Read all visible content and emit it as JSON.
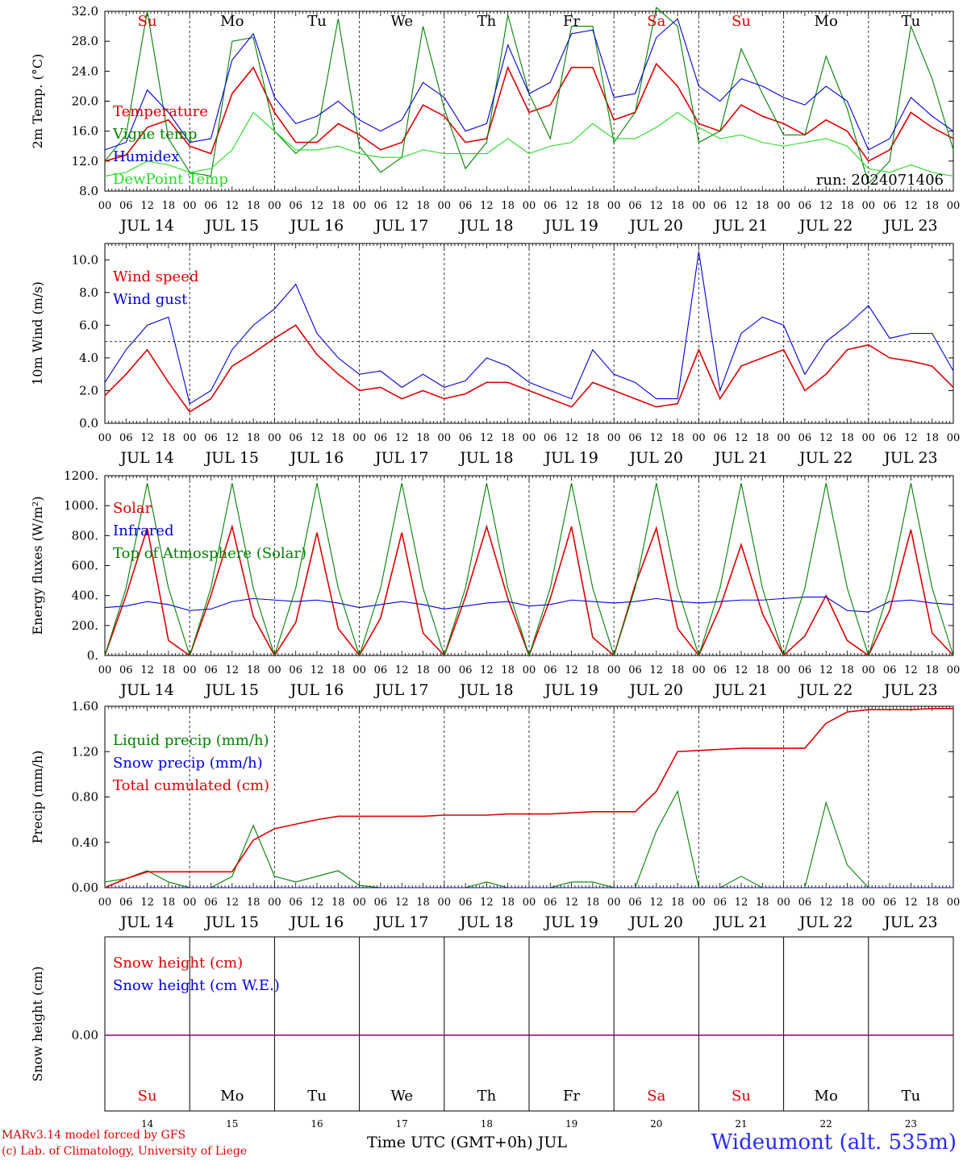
{
  "colors": {
    "red": "#e00000",
    "blue": "#0000dd",
    "green": "#008000",
    "lightgreen": "#22dd22",
    "purple": "#800080"
  },
  "footer": {
    "model": "MARv3.14 model forced by GFS",
    "credit": "(c) Lab. of Climatology, University of Liege",
    "time_label": "Time UTC (GMT+0h) JUL",
    "station": "Wideumont (alt. 535m)"
  },
  "chart_data": [
    {
      "type": "line",
      "ylabel": "2m Temp. (°C)",
      "ylim": [
        8,
        32
      ],
      "yticks": [
        "8.0",
        "12.0",
        "16.0",
        "20.0",
        "24.0",
        "28.0",
        "32.0"
      ],
      "annotation": "run: 2024071406",
      "day_names": [
        "Su",
        "Mo",
        "Tu",
        "We",
        "Th",
        "Fr",
        "Sa",
        "Su",
        "Mo",
        "Tu"
      ],
      "day_name_colors": [
        "red",
        "black",
        "black",
        "black",
        "black",
        "black",
        "red",
        "red",
        "black",
        "black"
      ],
      "hour_labels": [
        "00",
        "06",
        "12",
        "18"
      ],
      "date_labels": [
        "JUL 14",
        "JUL 15",
        "JUL 16",
        "JUL 17",
        "JUL 18",
        "JUL 19",
        "JUL 20",
        "JUL 21",
        "JUL 22",
        "JUL 23"
      ],
      "hours": [
        0,
        6,
        12,
        18,
        24,
        30,
        36,
        42,
        48,
        54,
        60,
        66,
        72,
        78,
        84,
        90,
        96,
        102,
        108,
        114,
        120,
        126,
        132,
        138,
        144,
        150,
        156,
        162,
        168,
        174,
        180,
        186,
        192,
        198,
        204,
        210,
        216,
        222,
        228,
        234,
        240
      ],
      "series": [
        {
          "name": "Temperature",
          "color": "red",
          "values": [
            12.0,
            12.8,
            16.5,
            17.5,
            14.0,
            13.0,
            21.0,
            24.5,
            18.5,
            14.5,
            14.5,
            17.0,
            15.5,
            13.5,
            14.5,
            19.5,
            18.0,
            14.5,
            15.0,
            24.5,
            18.5,
            19.5,
            24.5,
            24.5,
            17.5,
            18.5,
            25.0,
            22.0,
            17.0,
            16.0,
            19.5,
            18.0,
            17.0,
            15.5,
            17.5,
            16.0,
            12.0,
            13.5,
            18.5,
            16.5,
            15.0
          ]
        },
        {
          "name": "Vigne temp",
          "color": "green",
          "values": [
            12.0,
            15.5,
            32.0,
            15.0,
            10.5,
            10.0,
            28.0,
            28.5,
            16.0,
            13.0,
            15.5,
            31.0,
            14.0,
            10.5,
            12.5,
            30.0,
            19.0,
            11.0,
            14.5,
            31.5,
            21.0,
            15.0,
            30.0,
            30.0,
            14.5,
            18.5,
            32.5,
            30.0,
            14.5,
            16.0,
            27.0,
            21.0,
            15.5,
            15.5,
            26.0,
            19.0,
            9.0,
            12.0,
            30.0,
            23.0,
            13.5
          ]
        },
        {
          "name": "Humidex",
          "color": "blue",
          "values": [
            13.5,
            14.5,
            21.5,
            18.5,
            14.5,
            15.0,
            25.5,
            29.0,
            20.5,
            17.0,
            18.0,
            20.0,
            17.5,
            16.0,
            17.5,
            22.5,
            20.5,
            16.0,
            17.0,
            27.5,
            21.0,
            22.5,
            29.0,
            29.5,
            20.5,
            21.0,
            28.5,
            31.0,
            22.0,
            20.0,
            23.0,
            22.0,
            20.5,
            19.5,
            22.0,
            20.0,
            13.5,
            15.0,
            20.5,
            18.0,
            16.0
          ]
        },
        {
          "name": "DewPoint Temp",
          "color": "lightgreen",
          "values": [
            10.0,
            10.5,
            12.0,
            11.5,
            10.5,
            11.0,
            13.5,
            18.5,
            16.0,
            13.5,
            13.5,
            14.0,
            13.0,
            12.5,
            12.5,
            13.5,
            13.0,
            13.0,
            13.0,
            15.0,
            13.0,
            14.0,
            14.5,
            17.0,
            15.0,
            15.0,
            16.5,
            18.5,
            16.5,
            15.0,
            15.5,
            14.5,
            14.0,
            14.5,
            15.0,
            14.0,
            11.0,
            10.5,
            11.5,
            10.5,
            10.0
          ]
        }
      ]
    },
    {
      "type": "line",
      "ylabel": "10m Wind (m/s)",
      "ylim": [
        0,
        11
      ],
      "yticks": [
        "0.0",
        "2.0",
        "4.0",
        "6.0",
        "8.0",
        "10.0"
      ],
      "reference_line": 5,
      "hour_labels": [
        "00",
        "06",
        "12",
        "18"
      ],
      "date_labels": [
        "JUL 14",
        "JUL 15",
        "JUL 16",
        "JUL 17",
        "JUL 18",
        "JUL 19",
        "JUL 20",
        "JUL 21",
        "JUL 22",
        "JUL 23"
      ],
      "hours": [
        0,
        6,
        12,
        18,
        24,
        30,
        36,
        42,
        48,
        54,
        60,
        66,
        72,
        78,
        84,
        90,
        96,
        102,
        108,
        114,
        120,
        126,
        132,
        138,
        144,
        150,
        156,
        162,
        168,
        174,
        180,
        186,
        192,
        198,
        204,
        210,
        216,
        222,
        228,
        234,
        240
      ],
      "series": [
        {
          "name": "Wind speed",
          "color": "red",
          "values": [
            1.7,
            3.0,
            4.5,
            2.5,
            0.7,
            1.5,
            3.5,
            4.3,
            5.2,
            6.0,
            4.2,
            3.0,
            2.0,
            2.2,
            1.5,
            2.0,
            1.5,
            1.8,
            2.5,
            2.5,
            2.0,
            1.5,
            1.0,
            2.5,
            2.0,
            1.5,
            1.0,
            1.2,
            4.5,
            1.5,
            3.5,
            4.0,
            4.5,
            2.0,
            3.0,
            4.5,
            4.8,
            4.0,
            3.8,
            3.5,
            2.2
          ]
        },
        {
          "name": "Wind gust",
          "color": "blue",
          "values": [
            2.5,
            4.5,
            6.0,
            6.5,
            1.2,
            2.0,
            4.5,
            6.0,
            7.0,
            8.5,
            5.5,
            4.0,
            3.0,
            3.2,
            2.2,
            3.0,
            2.2,
            2.6,
            4.0,
            3.5,
            2.5,
            2.0,
            1.5,
            4.5,
            3.0,
            2.5,
            1.5,
            1.5,
            10.5,
            2.0,
            5.5,
            6.5,
            6.0,
            3.0,
            5.0,
            6.0,
            7.2,
            5.2,
            5.5,
            5.5,
            3.2
          ]
        }
      ]
    },
    {
      "type": "line",
      "ylabel": "Energy fluxes (W/m²)",
      "ylim": [
        0,
        1200
      ],
      "yticks": [
        "0.",
        "200.",
        "400.",
        "600.",
        "800.",
        "1000.",
        "1200."
      ],
      "hour_labels": [
        "00",
        "06",
        "12",
        "18"
      ],
      "date_labels": [
        "JUL 14",
        "JUL 15",
        "JUL 16",
        "JUL 17",
        "JUL 18",
        "JUL 19",
        "JUL 20",
        "JUL 21",
        "JUL 22",
        "JUL 23"
      ],
      "hours": [
        0,
        6,
        12,
        18,
        24,
        30,
        36,
        42,
        48,
        54,
        60,
        66,
        72,
        78,
        84,
        90,
        96,
        102,
        108,
        114,
        120,
        126,
        132,
        138,
        144,
        150,
        156,
        162,
        168,
        174,
        180,
        186,
        192,
        198,
        204,
        210,
        216,
        222,
        228,
        234,
        240
      ],
      "series": [
        {
          "name": "Solar",
          "color": "red",
          "values": [
            0,
            400,
            850,
            100,
            0,
            400,
            860,
            260,
            0,
            220,
            820,
            180,
            0,
            250,
            820,
            150,
            0,
            390,
            860,
            380,
            0,
            380,
            860,
            120,
            0,
            470,
            850,
            180,
            0,
            320,
            740,
            280,
            0,
            130,
            400,
            100,
            0,
            300,
            840,
            150,
            0
          ]
        },
        {
          "name": "Infrared",
          "color": "blue",
          "values": [
            320,
            330,
            360,
            340,
            300,
            310,
            360,
            380,
            370,
            360,
            370,
            350,
            320,
            340,
            360,
            340,
            310,
            330,
            350,
            360,
            330,
            340,
            370,
            360,
            350,
            360,
            380,
            360,
            350,
            360,
            370,
            370,
            380,
            390,
            390,
            300,
            290,
            360,
            370,
            350,
            340
          ]
        },
        {
          "name": "Top of Atmosphere (Solar)",
          "color": "green",
          "values": [
            0,
            450,
            1150,
            450,
            0,
            450,
            1150,
            450,
            0,
            450,
            1150,
            450,
            0,
            450,
            1150,
            450,
            0,
            450,
            1150,
            450,
            0,
            450,
            1150,
            450,
            0,
            450,
            1150,
            450,
            0,
            450,
            1150,
            450,
            0,
            450,
            1150,
            450,
            0,
            450,
            1150,
            450,
            0
          ]
        }
      ]
    },
    {
      "type": "line",
      "ylabel": "Precip (mm/h)",
      "ylim": [
        0,
        1.6
      ],
      "yticks": [
        "0.00",
        "0.40",
        "0.80",
        "1.20",
        "1.60"
      ],
      "hour_labels": [
        "00",
        "06",
        "12",
        "18"
      ],
      "date_labels": [
        "JUL 14",
        "JUL 15",
        "JUL 16",
        "JUL 17",
        "JUL 18",
        "JUL 19",
        "JUL 20",
        "JUL 21",
        "JUL 22",
        "JUL 23"
      ],
      "hours": [
        0,
        6,
        12,
        18,
        24,
        30,
        36,
        42,
        48,
        54,
        60,
        66,
        72,
        78,
        84,
        90,
        96,
        102,
        108,
        114,
        120,
        126,
        132,
        138,
        144,
        150,
        156,
        162,
        168,
        174,
        180,
        186,
        192,
        198,
        204,
        210,
        216,
        222,
        228,
        234,
        240
      ],
      "series": [
        {
          "name": "Liquid precip (mm/h)",
          "color": "green",
          "values": [
            0.05,
            0.08,
            0.15,
            0.05,
            0.0,
            0.0,
            0.1,
            0.55,
            0.1,
            0.05,
            0.1,
            0.15,
            0.02,
            0.0,
            0.0,
            0.0,
            0.0,
            0.0,
            0.05,
            0.0,
            0.0,
            0.0,
            0.05,
            0.05,
            0.0,
            0.0,
            0.5,
            0.85,
            0.0,
            0.0,
            0.1,
            0.0,
            0.0,
            0.0,
            0.75,
            0.2,
            0.0,
            0.0,
            0.0,
            0.0,
            0.0
          ]
        },
        {
          "name": "Snow precip (mm/h)",
          "color": "blue",
          "values": [
            0,
            0,
            0,
            0,
            0,
            0,
            0,
            0,
            0,
            0,
            0,
            0,
            0,
            0,
            0,
            0,
            0,
            0,
            0,
            0,
            0,
            0,
            0,
            0,
            0,
            0,
            0,
            0,
            0,
            0,
            0,
            0,
            0,
            0,
            0,
            0,
            0,
            0,
            0,
            0,
            0
          ]
        },
        {
          "name": "Total cumulated (cm)",
          "color": "red",
          "values": [
            0.0,
            0.08,
            0.14,
            0.14,
            0.14,
            0.14,
            0.14,
            0.42,
            0.52,
            0.56,
            0.6,
            0.63,
            0.63,
            0.63,
            0.63,
            0.63,
            0.64,
            0.64,
            0.64,
            0.65,
            0.65,
            0.65,
            0.66,
            0.67,
            0.67,
            0.67,
            0.85,
            1.2,
            1.21,
            1.22,
            1.23,
            1.23,
            1.23,
            1.23,
            1.45,
            1.55,
            1.57,
            1.57,
            1.57,
            1.58,
            1.58
          ]
        }
      ]
    },
    {
      "type": "line",
      "ylabel": "Snow height (cm)",
      "yticks": [
        "0.00"
      ],
      "day_names": [
        "Su",
        "Mo",
        "Tu",
        "We",
        "Th",
        "Fr",
        "Sa",
        "Su",
        "Mo",
        "Tu"
      ],
      "day_name_colors": [
        "red",
        "black",
        "black",
        "black",
        "black",
        "black",
        "red",
        "red",
        "black",
        "black"
      ],
      "date_numbers": [
        "14",
        "15",
        "16",
        "17",
        "18",
        "19",
        "20",
        "21",
        "22",
        "23"
      ],
      "series": [
        {
          "name": "Snow height (cm)",
          "color": "red",
          "values": [
            0,
            0
          ]
        },
        {
          "name": "Snow height (cm W.E.)",
          "color": "blue",
          "values": [
            0,
            0
          ]
        }
      ]
    }
  ]
}
